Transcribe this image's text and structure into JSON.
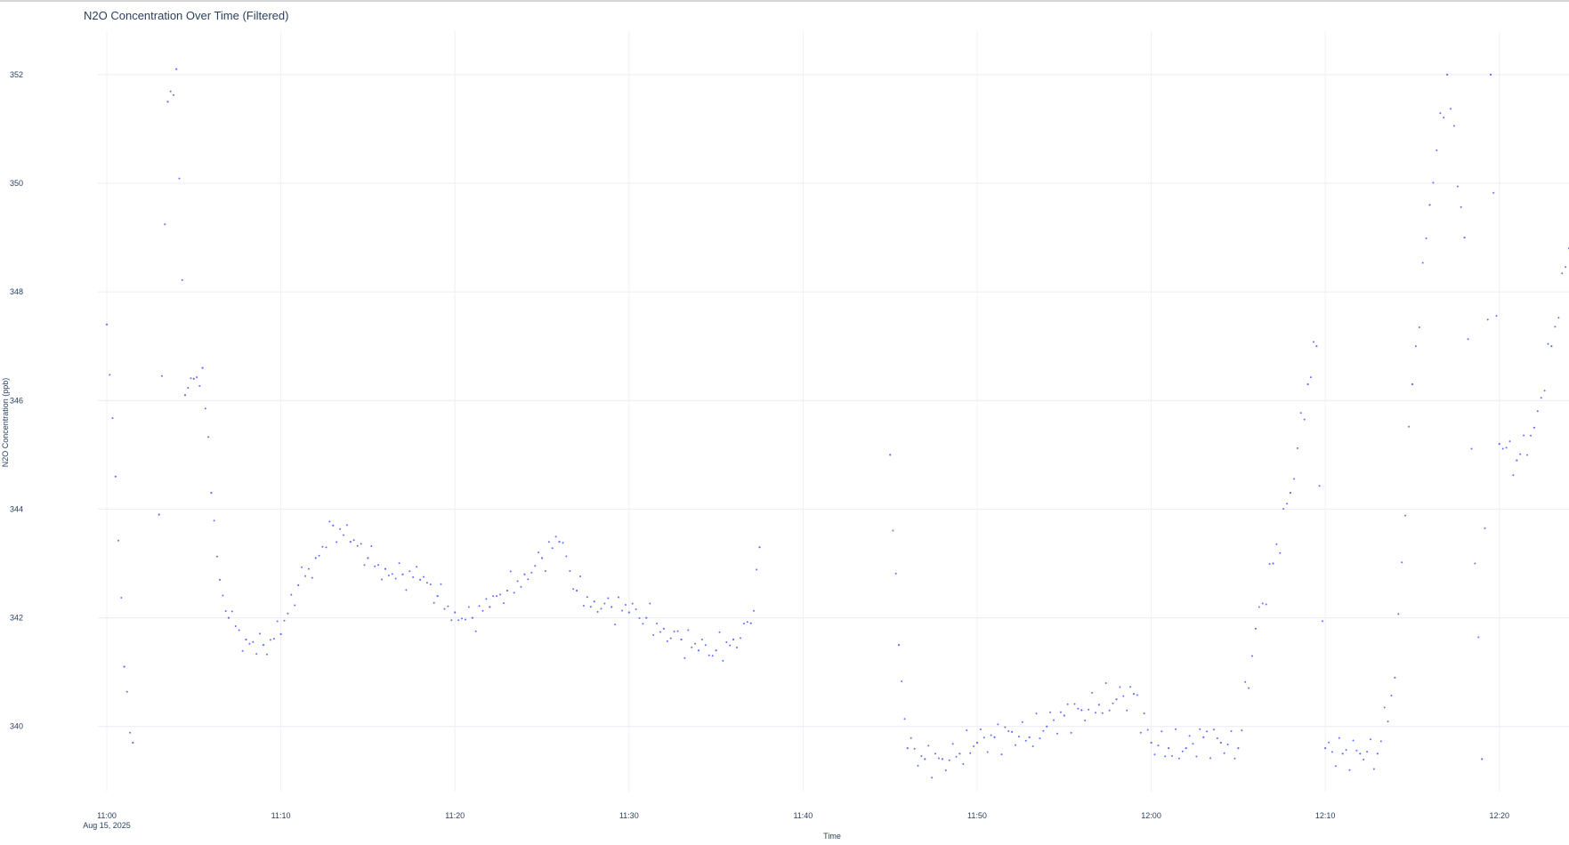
{
  "chart_data": {
    "type": "scatter",
    "title": "N2O Concentration Over Time (Filtered)",
    "xlabel": "Time",
    "ylabel": "N2O Concentration (ppb)",
    "x_axis_type": "time",
    "xlim": [
      "2025-08-15 11:00",
      "2025-08-15 12:24"
    ],
    "ylim": [
      338.8,
      352.8
    ],
    "x_ticks": [
      {
        "t": "11:00",
        "label": "11:00",
        "sublabel": "Aug 15, 2025"
      },
      {
        "t": "11:10",
        "label": "11:10"
      },
      {
        "t": "11:20",
        "label": "11:20"
      },
      {
        "t": "11:30",
        "label": "11:30"
      },
      {
        "t": "11:40",
        "label": "11:40"
      },
      {
        "t": "11:50",
        "label": "11:50"
      },
      {
        "t": "12:00",
        "label": "12:00"
      },
      {
        "t": "12:10",
        "label": "12:10"
      },
      {
        "t": "12:20",
        "label": "12:20"
      }
    ],
    "y_ticks": [
      340,
      342,
      344,
      346,
      348,
      350,
      352
    ],
    "grid": true,
    "marker_color": "#636efa",
    "series": [
      {
        "x": [
          "11:00",
          "11:00:30",
          "11:01",
          "11:01:30",
          "11:02",
          "11:03",
          "11:03:30",
          "11:04",
          "11:04:30",
          "11:05",
          "11:05:30",
          "11:06",
          "11:06:30",
          "11:07",
          "11:08",
          "11:09",
          "11:10",
          "11:11",
          "11:12",
          "11:13",
          "11:14",
          "11:15",
          "11:16",
          "11:17",
          "11:18",
          "11:19",
          "11:20",
          "11:21",
          "11:22",
          "11:23",
          "11:24",
          "11:25",
          "11:26",
          "11:27",
          "11:28",
          "11:29",
          "11:30",
          "11:31",
          "11:32",
          "11:33",
          "11:34",
          "11:35",
          "11:36",
          "11:37",
          "11:37:30",
          "11:45",
          "11:45:30",
          "11:46",
          "11:47",
          "11:48",
          "11:49",
          "11:50",
          "11:51",
          "11:52",
          "11:53",
          "11:54",
          "11:55",
          "11:56",
          "11:57",
          "11:58",
          "11:59",
          "12:00",
          "12:01",
          "12:02",
          "12:03",
          "12:04",
          "12:05",
          "12:06",
          "12:07",
          "12:08",
          "12:09",
          "12:09:30",
          "12:10",
          "12:11",
          "12:12",
          "12:13",
          "12:14",
          "12:15",
          "12:16",
          "12:17",
          "12:18",
          "12:19",
          "12:19:30",
          "12:20",
          "12:21",
          "12:22",
          "12:23",
          "12:24"
        ],
        "y": [
          347.4,
          344.6,
          341.1,
          339.7,
          null,
          343.9,
          351.5,
          352.1,
          346.1,
          346.4,
          346.6,
          344.3,
          342.7,
          342.0,
          341.6,
          341.5,
          341.7,
          342.6,
          343.1,
          343.7,
          343.4,
          343.1,
          342.9,
          342.8,
          342.7,
          342.4,
          342.1,
          342.0,
          342.2,
          342.5,
          342.8,
          343.1,
          343.4,
          342.5,
          342.3,
          342.2,
          342.1,
          342.0,
          341.8,
          341.6,
          341.4,
          341.4,
          341.6,
          341.9,
          343.3,
          345.0,
          341.5,
          339.6,
          339.4,
          339.4,
          339.5,
          339.7,
          339.8,
          339.9,
          339.8,
          340.0,
          340.2,
          340.3,
          340.4,
          340.5,
          340.6,
          339.7,
          339.6,
          339.6,
          339.8,
          339.7,
          339.6,
          341.8,
          343.0,
          344.3,
          346.3,
          347.0,
          339.6,
          339.5,
          339.5,
          339.5,
          340.9,
          346.3,
          349.6,
          352.0,
          349.0,
          339.4,
          352.0,
          345.2,
          344.9,
          345.5,
          347.0,
          348.8
        ]
      }
    ]
  }
}
